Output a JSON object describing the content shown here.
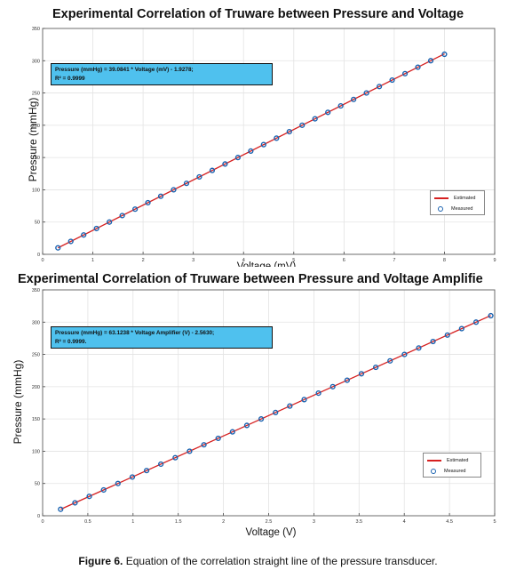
{
  "caption": {
    "label": "Figure 6.",
    "text": " Equation of the correlation straight line of the pressure transducer."
  },
  "chart_data": [
    {
      "type": "line",
      "title": "Experimental Correlation of Truware between Pressure and Voltage",
      "xlabel": "Voltage (mV)",
      "ylabel": "Pressure (mmHg)",
      "xlim": [
        0,
        9
      ],
      "ylim": [
        0,
        350
      ],
      "xticks": [
        "0",
        "1",
        "2",
        "3",
        "4",
        "5",
        "6",
        "7",
        "8",
        "9"
      ],
      "yticks": [
        "0",
        "50",
        "100",
        "150",
        "200",
        "250",
        "300",
        "350"
      ],
      "grid": true,
      "annotation": [
        "Pressure (mmHg) = 39.0841 * Voltage (mV)  - 1.9278;",
        "R² = 0.9999"
      ],
      "legend_position": "bottom-right",
      "series": [
        {
          "name": "Estimated",
          "style": "line",
          "color": "#d62020",
          "x": [
            0.305,
            8.0
          ],
          "y": [
            10,
            310.7
          ]
        },
        {
          "name": "Measured",
          "style": "marker",
          "color": "#1a62b0",
          "x": [
            0.305,
            0.561,
            0.817,
            1.073,
            1.329,
            1.585,
            1.841,
            2.096,
            2.352,
            2.608,
            2.864,
            3.12,
            3.376,
            3.632,
            3.888,
            4.144,
            4.4,
            4.656,
            4.912,
            5.167,
            5.423,
            5.679,
            5.935,
            6.191,
            6.447,
            6.703,
            6.959,
            7.215,
            7.471,
            7.727,
            8.0
          ],
          "y": [
            10,
            20,
            30,
            40,
            50,
            60,
            70,
            80,
            90,
            100,
            110,
            120,
            130,
            140,
            150,
            160,
            170,
            180,
            190,
            200,
            210,
            220,
            230,
            240,
            250,
            260,
            270,
            280,
            290,
            300,
            310
          ]
        }
      ]
    },
    {
      "type": "line",
      "title": "Experimental Correlation of Truware between Pressure and Voltage Amplifie",
      "xlabel": "Voltage (V)",
      "ylabel": "Pressure (mmHg)",
      "xlim": [
        0,
        5
      ],
      "ylim": [
        0,
        350
      ],
      "xticks": [
        "0",
        "0.5",
        "1",
        "1.5",
        "2",
        "2.5",
        "3",
        "3.5",
        "4",
        "4.5",
        "5"
      ],
      "yticks": [
        "0",
        "50",
        "100",
        "150",
        "200",
        "250",
        "300",
        "350"
      ],
      "grid": true,
      "annotation": [
        "Pressure (mmHg) = 63.1238 * Voltage Amplifier (V)  - 2.5630;",
        "R² = 0.9999."
      ],
      "legend_position": "bottom-right",
      "series": [
        {
          "name": "Estimated",
          "style": "line",
          "color": "#d62020",
          "x": [
            0.199,
            4.957
          ],
          "y": [
            10,
            310.3
          ]
        },
        {
          "name": "Measured",
          "style": "marker",
          "color": "#1a62b0",
          "x": [
            0.199,
            0.358,
            0.516,
            0.675,
            0.833,
            0.992,
            1.15,
            1.308,
            1.467,
            1.625,
            1.784,
            1.942,
            2.1,
            2.259,
            2.417,
            2.576,
            2.734,
            2.893,
            3.051,
            3.209,
            3.368,
            3.526,
            3.685,
            3.843,
            4.002,
            4.16,
            4.318,
            4.477,
            4.635,
            4.794,
            4.957
          ],
          "y": [
            10,
            20,
            30,
            40,
            50,
            60,
            70,
            80,
            90,
            100,
            110,
            120,
            130,
            140,
            150,
            160,
            170,
            180,
            190,
            200,
            210,
            220,
            230,
            240,
            250,
            260,
            270,
            280,
            290,
            300,
            310
          ]
        }
      ]
    }
  ]
}
